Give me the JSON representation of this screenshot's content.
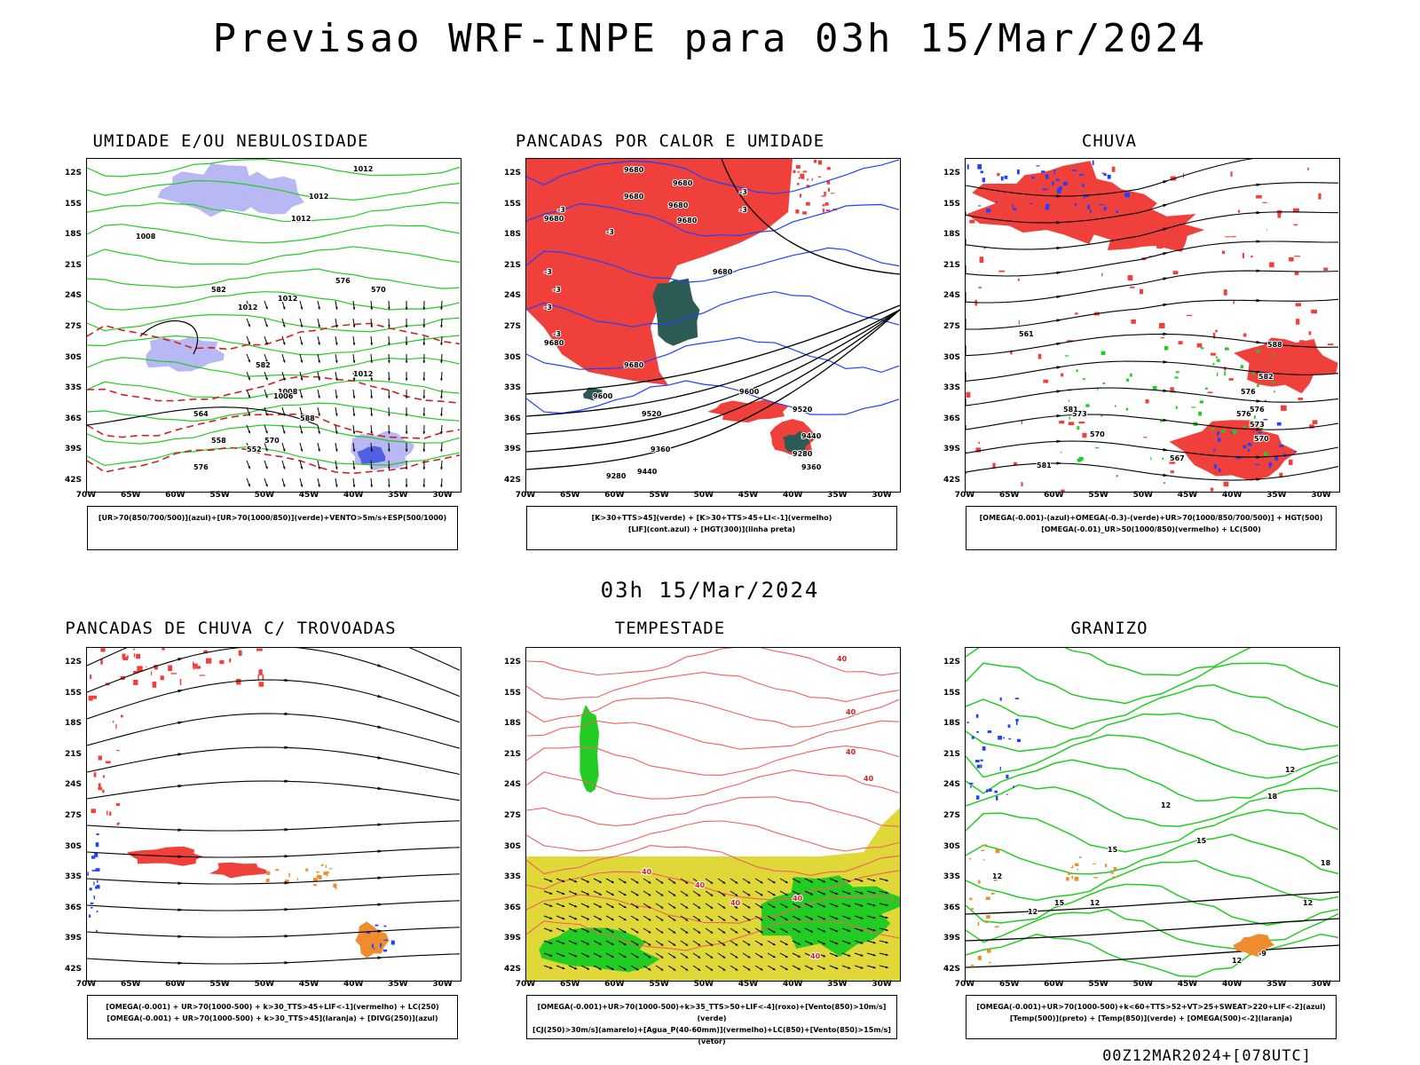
{
  "main_title": "Previsao WRF-INPE  para 03h 15/Mar/2024",
  "mid_title": "03h 15/Mar/2024",
  "footer": "00Z12MAR2024+[078UTC]",
  "axes": {
    "lat_labels": [
      "12S",
      "15S",
      "18S",
      "21S",
      "24S",
      "27S",
      "30S",
      "33S",
      "36S",
      "39S",
      "42S"
    ],
    "lon_labels": [
      "70W",
      "65W",
      "60W",
      "55W",
      "50W",
      "45W",
      "40W",
      "35W",
      "30W"
    ]
  },
  "panels": [
    {
      "title": "UMIDADE E/OU NEBULOSIDADE",
      "legend_line1": "[UR>70(850/700/500)](azul)+[UR>70(1000/850)](verde)+VENTO>5m/s+ESP(500/1000)",
      "legend_line2": "",
      "labels": [
        "1012",
        "1012",
        "1012",
        "1008",
        "1012",
        "1012",
        "1008",
        "1006",
        "1012",
        "576",
        "582",
        "570",
        "564",
        "558",
        "552",
        "576",
        "582",
        "588",
        "570"
      ]
    },
    {
      "title": "PANCADAS POR CALOR E UMIDADE",
      "legend_line1": "[K>30+TTS>45](verde) + [K>30+TTS>45+LI<-1](vermelho)",
      "legend_line2": "[LIF](cont.azul) + [HGT(300)](linha preta)",
      "labels": [
        "9680",
        "9680",
        "9680",
        "9680",
        "9680",
        "9680",
        "9680",
        "9680",
        "9680",
        "9600",
        "9520",
        "9600",
        "9520",
        "9440",
        "9360",
        "9280",
        "9440",
        "9360",
        "9280",
        "-3",
        "-3",
        "-3",
        "-3",
        "-3",
        "-3",
        "-3",
        "-3"
      ]
    },
    {
      "title": "CHUVA",
      "legend_line1": "[OMEGA(-0.001)-(azul)+OMEGA(-0.3)-(verde)+UR>70(1000/850/700/500)] + HGT(500)",
      "legend_line2": "[OMEGA(-0.01)_UR>50(1000/850)(vermelho) + LC(500)",
      "labels": [
        "588",
        "582",
        "576",
        "576",
        "573",
        "570",
        "567",
        "581",
        "581",
        "561",
        "576",
        "573",
        "570"
      ]
    },
    {
      "title": "PANCADAS DE CHUVA C/ TROVOADAS",
      "legend_line1": "[OMEGA(-0.001) + UR>70(1000-500) + k>30_TTS>45+LIF<-1](vermelho) + LC(250)",
      "legend_line2": "[OMEGA(-0.001) + UR>70(1000-500) + k>30_TTS>45](laranja) + [DIVG(250)](azul)",
      "labels": []
    },
    {
      "title": "TEMPESTADE",
      "legend_line1": "[OMEGA(-0.001)+UR>70(1000-500)+k>35_TTS>50+LIF<-4](roxo)+[Vento(850)>10m/s](verde)",
      "legend_line2": "[CJ(250)>30m/s](amarelo)+[Agua_P(40-60mm)](vermelho)+LC(850)+[Vento(850)>15m/s](vetor)",
      "labels": [
        "40",
        "40",
        "40",
        "40",
        "40",
        "40",
        "40",
        "40",
        "40"
      ]
    },
    {
      "title": "GRANIZO",
      "legend_line1": "[OMEGA(-0.001)+UR>70(1000-500)+k<60+TTS>52+VT>25+SWEAT>220+LIF<-2](azul)",
      "legend_line2": "[Temp(500)](preto) + [Temp(850)](verde) + [OMEGA(500)<-2](laranja)",
      "labels": [
        "12",
        "12",
        "12",
        "12",
        "15",
        "12",
        "15",
        "12",
        "18",
        "18",
        "15",
        "12",
        "-9"
      ]
    }
  ],
  "colors": {
    "red": "#f0403c",
    "green": "#22cc22",
    "blue": "#2040ff",
    "lavender": "#b8b8f4",
    "yellow": "#e0d838",
    "teal": "#2c5a54",
    "orange": "#f08c30",
    "purple": "#8c20c8",
    "darkred": "#d02020"
  }
}
